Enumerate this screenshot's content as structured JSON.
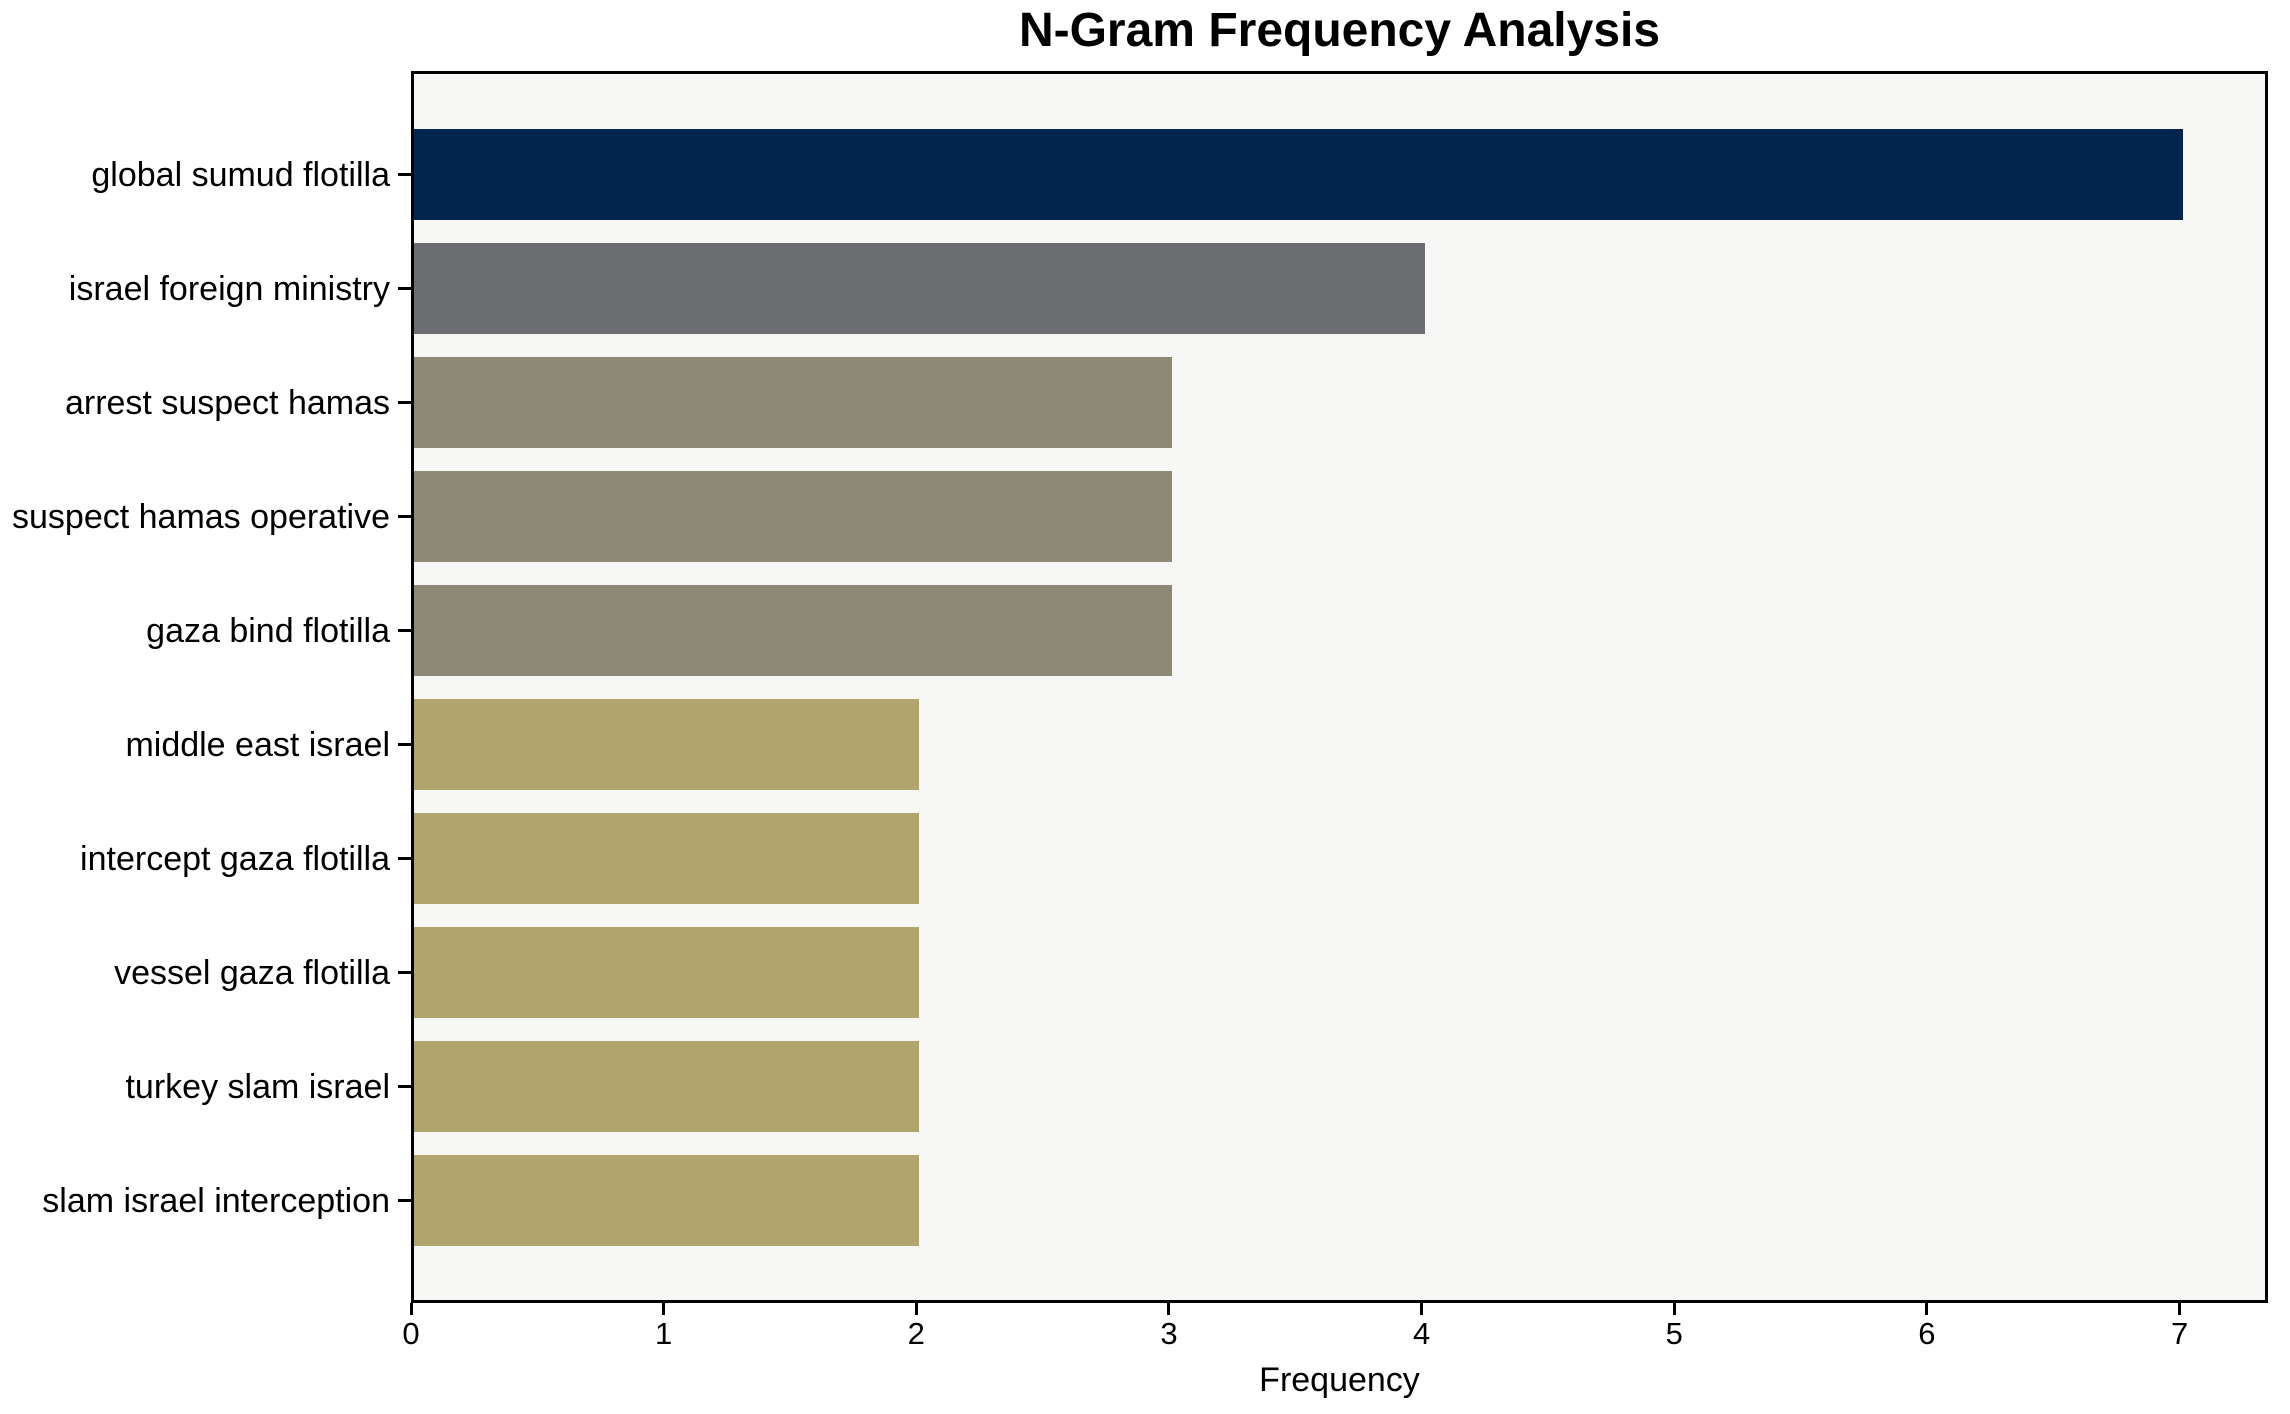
{
  "title": "N-Gram Frequency Analysis",
  "chart_data": {
    "type": "bar",
    "orientation": "horizontal",
    "title": "N-Gram Frequency Analysis",
    "xlabel": "Frequency",
    "ylabel": "",
    "categories": [
      "global sumud flotilla",
      "israel foreign ministry",
      "arrest suspect hamas",
      "suspect hamas operative",
      "gaza bind flotilla",
      "middle east israel",
      "intercept gaza flotilla",
      "vessel gaza flotilla",
      "turkey slam israel",
      "slam israel interception"
    ],
    "values": [
      7,
      4,
      3,
      3,
      3,
      2,
      2,
      2,
      2,
      2
    ],
    "bar_colors": [
      "#01254f",
      "#6c6d70",
      "#8e8877",
      "#8e8877",
      "#8e8877",
      "#b0a56c",
      "#b0a56c",
      "#b0a56c",
      "#b0a56c",
      "#b0a56c"
    ],
    "x_ticks": [
      0,
      1,
      2,
      3,
      4,
      5,
      6,
      7
    ],
    "xlim": [
      0,
      7.35
    ],
    "grid": false,
    "legend_position": "none",
    "plot_background": "#f7f7f6",
    "figure_background": "#ffffff",
    "axis_color": "#000000"
  }
}
